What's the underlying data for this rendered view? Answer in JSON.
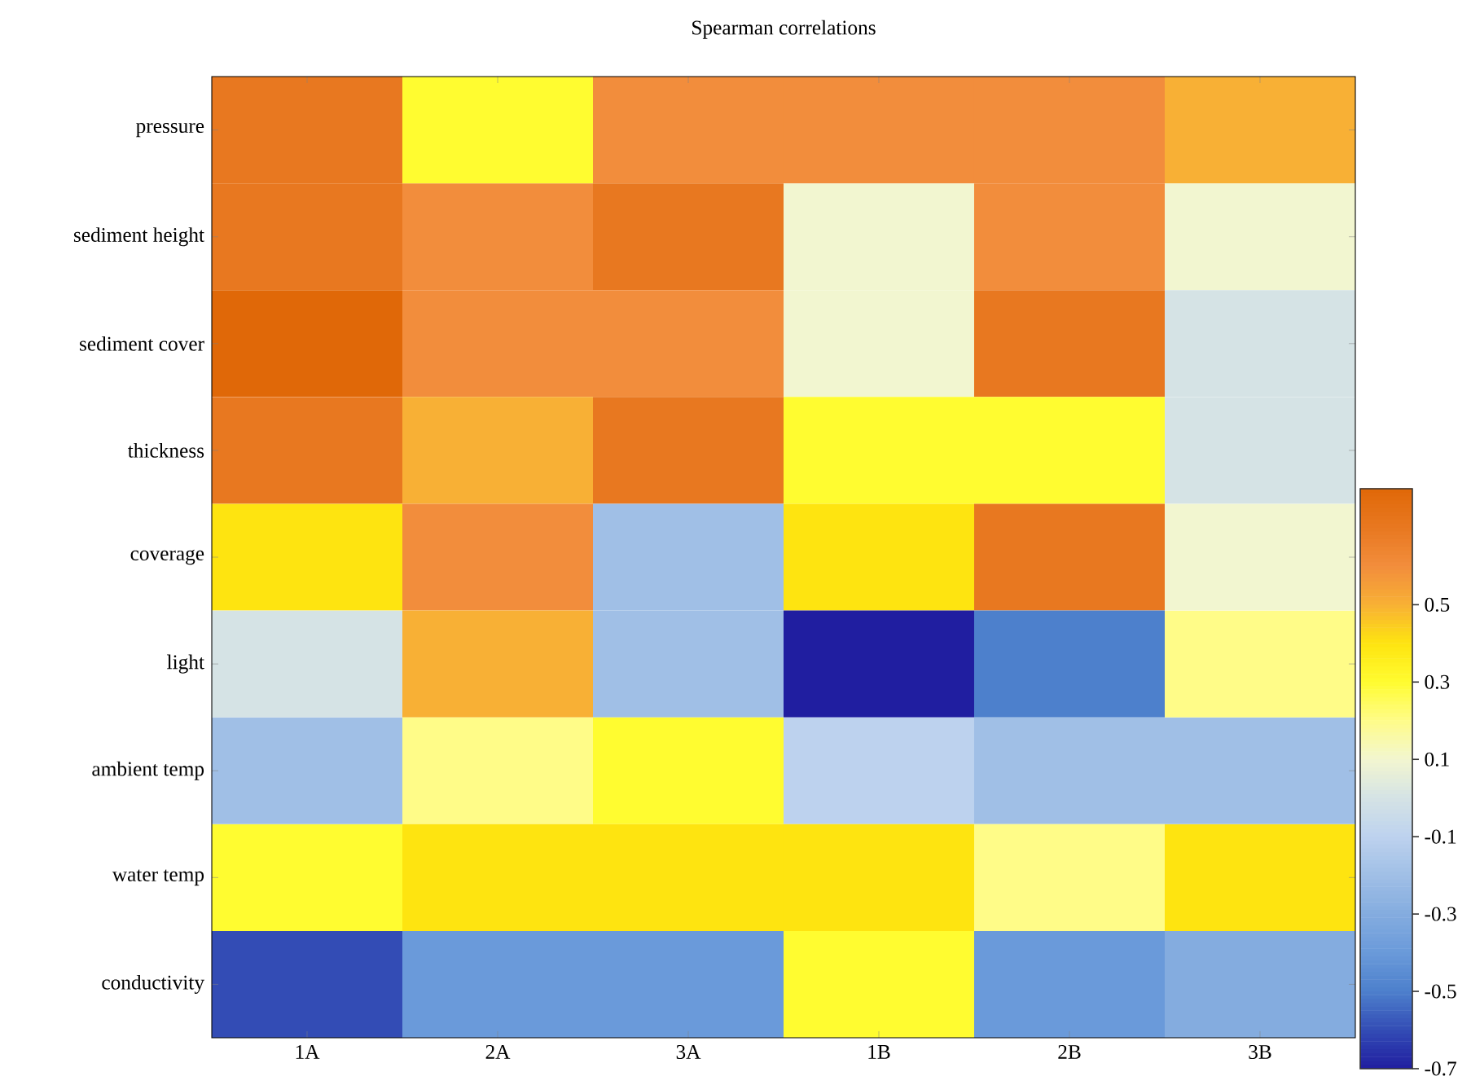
{
  "chart_data": {
    "type": "heatmap",
    "title": "Spearman correlations",
    "categories": [
      "1A",
      "2A",
      "3A",
      "1B",
      "2B",
      "3B"
    ],
    "y_categories": [
      "pressure",
      "sediment height",
      "sediment cover",
      "thickness",
      "coverage",
      "light",
      "ambient temp",
      "water temp",
      "conductivity"
    ],
    "cells": [
      [
        0.7,
        0.3,
        0.6,
        0.6,
        0.6,
        0.5
      ],
      [
        0.7,
        0.6,
        0.7,
        0.1,
        0.6,
        0.1
      ],
      [
        0.8,
        0.6,
        0.6,
        0.1,
        0.7,
        0.0
      ],
      [
        0.7,
        0.5,
        0.7,
        0.3,
        0.3,
        0.0
      ],
      [
        0.4,
        0.6,
        -0.2,
        0.4,
        0.7,
        0.1
      ],
      [
        0.0,
        0.5,
        -0.2,
        -0.7,
        -0.5,
        0.2
      ],
      [
        -0.2,
        0.2,
        0.3,
        -0.1,
        -0.2,
        -0.2
      ],
      [
        0.3,
        0.4,
        0.4,
        0.4,
        0.2,
        0.4
      ],
      [
        -0.6,
        -0.4,
        -0.4,
        0.3,
        -0.4,
        -0.3
      ]
    ],
    "clim": [
      -0.7,
      0.8
    ],
    "cticks": [
      0.5,
      0.3,
      0.1,
      -0.1,
      -0.3,
      -0.5,
      -0.7
    ]
  }
}
